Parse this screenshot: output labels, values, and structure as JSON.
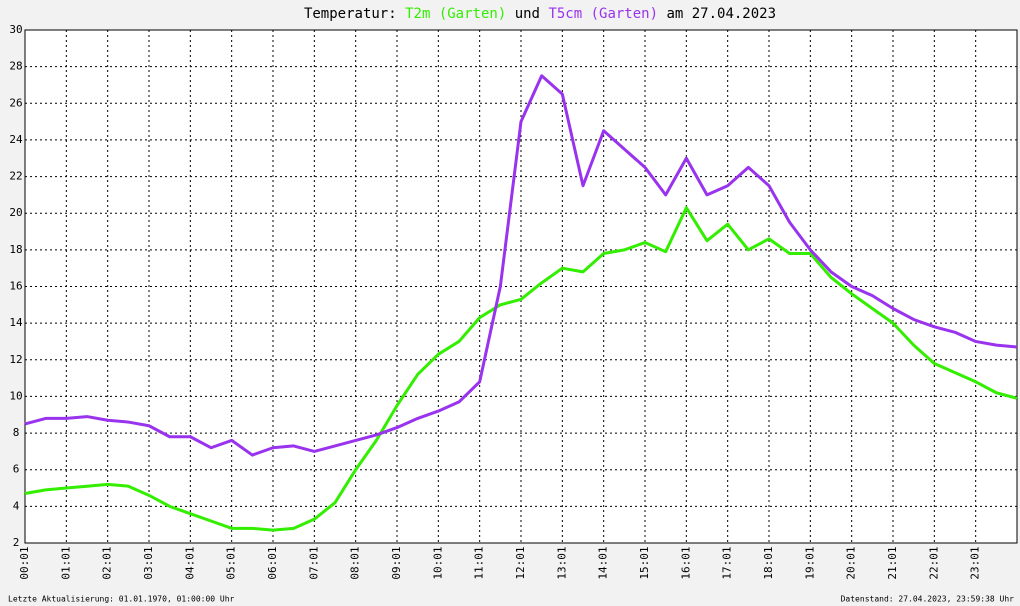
{
  "chart_data": {
    "type": "line",
    "title": {
      "prefix": "Temperatur:",
      "conjunction": "und",
      "suffix": "am 27.04.2023"
    },
    "x": [
      0,
      0.5,
      1,
      1.5,
      2,
      2.5,
      3,
      3.5,
      4,
      4.5,
      5,
      5.5,
      6,
      6.5,
      7,
      7.5,
      8,
      8.5,
      9,
      9.5,
      10,
      10.5,
      11,
      11.5,
      12,
      12.5,
      13,
      13.5,
      14,
      14.5,
      15,
      15.5,
      16,
      16.5,
      17,
      17.5,
      18,
      18.5,
      19,
      19.5,
      20,
      20.5,
      21,
      21.5,
      22,
      22.5,
      23,
      23.5,
      24
    ],
    "series": [
      {
        "name": "T2m (Garten)",
        "color": "#33ee00",
        "values": [
          4.7,
          4.9,
          5.0,
          5.1,
          5.2,
          5.1,
          4.6,
          4.0,
          3.6,
          3.2,
          2.8,
          2.8,
          2.7,
          2.8,
          3.3,
          4.2,
          6.0,
          7.6,
          9.5,
          11.2,
          12.3,
          13.0,
          14.3,
          15.0,
          15.3,
          16.2,
          17.0,
          16.8,
          17.8,
          18.0,
          18.4,
          17.9,
          20.3,
          18.5,
          19.4,
          18.0,
          18.6,
          17.8,
          17.8,
          16.5,
          15.6,
          14.8,
          14.0,
          12.8,
          11.8,
          11.3,
          10.8,
          10.2,
          9.9
        ]
      },
      {
        "name": "T5cm (Garten)",
        "color": "#9933ee",
        "values": [
          8.5,
          8.8,
          8.8,
          8.9,
          8.7,
          8.6,
          8.4,
          7.8,
          7.8,
          7.2,
          7.6,
          6.8,
          7.2,
          7.3,
          7.0,
          7.3,
          7.6,
          7.9,
          8.3,
          8.8,
          9.2,
          9.7,
          10.8,
          16.0,
          25.0,
          27.5,
          26.5,
          21.5,
          24.5,
          23.5,
          22.5,
          21.0,
          23.0,
          21.0,
          21.5,
          22.5,
          21.5,
          19.5,
          18.0,
          16.8,
          16.0,
          15.5,
          14.8,
          14.2,
          13.8,
          13.5,
          13.0,
          12.8,
          12.7
        ]
      }
    ],
    "xlim": [
      0,
      24
    ],
    "xticks": [
      {
        "value": 0,
        "label": "00:01"
      },
      {
        "value": 1,
        "label": "01:01"
      },
      {
        "value": 2,
        "label": "02:01"
      },
      {
        "value": 3,
        "label": "03:01"
      },
      {
        "value": 4,
        "label": "04:01"
      },
      {
        "value": 5,
        "label": "05:01"
      },
      {
        "value": 6,
        "label": "06:01"
      },
      {
        "value": 7,
        "label": "07:01"
      },
      {
        "value": 8,
        "label": "08:01"
      },
      {
        "value": 9,
        "label": "09:01"
      },
      {
        "value": 10,
        "label": "10:01"
      },
      {
        "value": 11,
        "label": "11:01"
      },
      {
        "value": 12,
        "label": "12:01"
      },
      {
        "value": 13,
        "label": "13:01"
      },
      {
        "value": 14,
        "label": "14:01"
      },
      {
        "value": 15,
        "label": "15:01"
      },
      {
        "value": 16,
        "label": "16:01"
      },
      {
        "value": 17,
        "label": "17:01"
      },
      {
        "value": 18,
        "label": "18:01"
      },
      {
        "value": 19,
        "label": "19:01"
      },
      {
        "value": 20,
        "label": "20:01"
      },
      {
        "value": 21,
        "label": "21:01"
      },
      {
        "value": 22,
        "label": "22:01"
      },
      {
        "value": 23,
        "label": "23:01"
      }
    ],
    "ylim": [
      2,
      30
    ],
    "yticks": [
      2,
      4,
      6,
      8,
      10,
      12,
      14,
      16,
      18,
      20,
      22,
      24,
      26,
      28,
      30
    ],
    "grid": true
  },
  "footer": {
    "left": "Letzte Aktualisierung: 01.01.1970, 01:00:00 Uhr",
    "right": "Datenstand: 27.04.2023, 23:59:38 Uhr"
  }
}
